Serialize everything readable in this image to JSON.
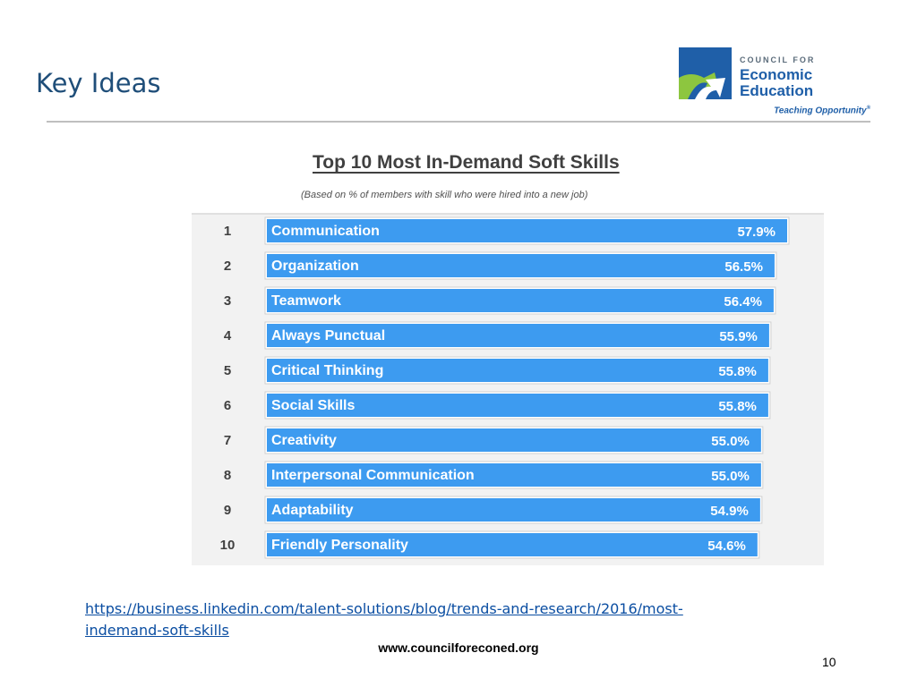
{
  "slide": {
    "title": "Key Ideas",
    "page_number": "10",
    "footer_url": "www.councilforeconed.org",
    "source_link": "https://business.linkedin.com/talent-solutions/blog/trends-and-research/2016/most-indemand-soft-skills"
  },
  "logo": {
    "line1": "COUNCIL FOR",
    "line2": "Economic",
    "line3": "Education",
    "tagline": "Teaching Opportunity",
    "registered": "®",
    "icon": "arrow-mark-icon",
    "colors": {
      "blue": "#1f5fa8",
      "green": "#8dc63f"
    }
  },
  "chart_data": {
    "type": "bar",
    "title": "Top 10 Most In-Demand Soft Skills",
    "subtitle": "(Based on % of members with skill who were hired into a new job)",
    "ranks": [
      "1",
      "2",
      "3",
      "4",
      "5",
      "6",
      "7",
      "8",
      "9",
      "10"
    ],
    "categories": [
      "Communication",
      "Organization",
      "Teamwork",
      "Always Punctual",
      "Critical Thinking",
      "Social Skills",
      "Creativity",
      "Interpersonal Communication",
      "Adaptability",
      "Friendly Personality"
    ],
    "values": [
      57.9,
      56.5,
      56.4,
      55.9,
      55.8,
      55.8,
      55.0,
      55.0,
      54.9,
      54.6
    ],
    "value_labels": [
      "57.9%",
      "56.5%",
      "56.4%",
      "55.9%",
      "55.8%",
      "55.8%",
      "55.0%",
      "55.0%",
      "54.9%",
      "54.6%"
    ],
    "bar_color": "#3d9bf0",
    "orientation": "horizontal"
  }
}
